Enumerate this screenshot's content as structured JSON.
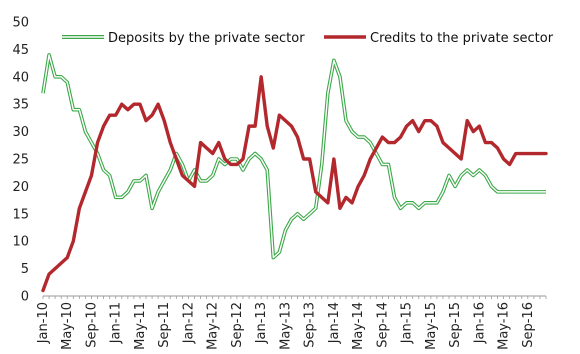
{
  "chart_data": {
    "type": "line",
    "title": "",
    "xlabel": "",
    "ylabel": "",
    "ylim": [
      0,
      50
    ],
    "yticks": [
      0,
      5,
      10,
      15,
      20,
      25,
      30,
      35,
      40,
      45,
      50
    ],
    "grid": false,
    "legend": "top",
    "x_tick_labels": [
      "Jan-10",
      "May-10",
      "Sep-10",
      "Jan-11",
      "May-11",
      "Sep-11",
      "Jan-12",
      "May-12",
      "Sep-12",
      "Jan-13",
      "May-13",
      "Sep-13",
      "Jan-14",
      "May-14",
      "Sep-14",
      "Jan-15",
      "May-15",
      "Sep-15",
      "Jan-16",
      "May-16",
      "Sep-16"
    ],
    "x": [
      "Jan-10",
      "Feb-10",
      "Mar-10",
      "Apr-10",
      "May-10",
      "Jun-10",
      "Jul-10",
      "Aug-10",
      "Sep-10",
      "Oct-10",
      "Nov-10",
      "Dec-10",
      "Jan-11",
      "Feb-11",
      "Mar-11",
      "Apr-11",
      "May-11",
      "Jun-11",
      "Jul-11",
      "Aug-11",
      "Sep-11",
      "Oct-11",
      "Nov-11",
      "Dec-11",
      "Jan-12",
      "Feb-12",
      "Mar-12",
      "Apr-12",
      "May-12",
      "Jun-12",
      "Jul-12",
      "Aug-12",
      "Sep-12",
      "Oct-12",
      "Nov-12",
      "Dec-12",
      "Jan-13",
      "Feb-13",
      "Mar-13",
      "Apr-13",
      "May-13",
      "Jun-13",
      "Jul-13",
      "Aug-13",
      "Sep-13",
      "Oct-13",
      "Nov-13",
      "Dec-13",
      "Jan-14",
      "Feb-14",
      "Mar-14",
      "Apr-14",
      "May-14",
      "Jun-14",
      "Jul-14",
      "Aug-14",
      "Sep-14",
      "Oct-14",
      "Nov-14",
      "Dec-14",
      "Jan-15",
      "Feb-15",
      "Mar-15",
      "Apr-15",
      "May-15",
      "Jun-15",
      "Jul-15",
      "Aug-15",
      "Sep-15",
      "Oct-15",
      "Nov-15",
      "Dec-15",
      "Jan-16",
      "Feb-16",
      "Mar-16",
      "Apr-16",
      "May-16",
      "Jun-16",
      "Jul-16",
      "Aug-16",
      "Sep-16",
      "Oct-16",
      "Nov-16",
      "Dec-16"
    ],
    "series": [
      {
        "name": "Deposits by the private sector",
        "color": "#3ca848",
        "style": "double",
        "values": [
          37,
          44,
          40,
          40,
          39,
          34,
          34,
          30,
          28,
          26,
          23,
          22,
          18,
          18,
          19,
          21,
          21,
          22,
          16,
          19,
          21,
          23,
          26,
          24,
          21,
          23,
          21,
          21,
          22,
          25,
          24,
          25,
          25,
          23,
          25,
          26,
          25,
          23,
          7,
          8,
          12,
          14,
          15,
          14,
          15,
          16,
          24,
          37,
          43,
          40,
          32,
          30,
          29,
          29,
          28,
          26,
          24,
          24,
          18,
          16,
          17,
          17,
          16,
          17,
          17,
          17,
          19,
          22,
          20,
          22,
          23,
          22,
          23,
          22,
          20,
          19,
          19,
          19,
          19,
          19,
          19,
          19,
          19,
          19
        ],
        "_note": "padding"
      },
      {
        "name": "Credits to the private sector",
        "color": "#b3282d",
        "style": "solid",
        "values": [
          1,
          4,
          5,
          6,
          7,
          10,
          16,
          19,
          22,
          28,
          31,
          33,
          33,
          35,
          34,
          35,
          35,
          32,
          33,
          35,
          32,
          28,
          25,
          22,
          21,
          20,
          28,
          27,
          26,
          28,
          25,
          24,
          24,
          25,
          31,
          31,
          40,
          31,
          27,
          33,
          32,
          31,
          29,
          25,
          25,
          19,
          18,
          17,
          25,
          16,
          18,
          17,
          20,
          22,
          25,
          27,
          29,
          28,
          28,
          29,
          31,
          32,
          30,
          32,
          32,
          31,
          28,
          27,
          26,
          25,
          32,
          30,
          31,
          28,
          28,
          27,
          25,
          24,
          26,
          26,
          26,
          26,
          26,
          26
        ]
      }
    ]
  }
}
